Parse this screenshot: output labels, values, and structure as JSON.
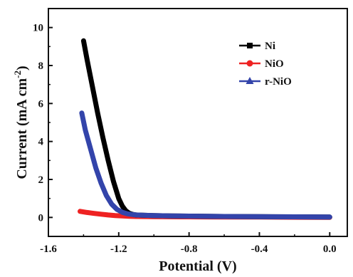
{
  "chart_data": {
    "type": "line",
    "title": "",
    "xlabel": "Potential (V)",
    "ylabel_main": "Current (mA cm",
    "ylabel_sup": "-2",
    "ylabel_close": ")",
    "xlim": [
      -1.6,
      0.1
    ],
    "ylim": [
      -1.0,
      11.0
    ],
    "x_ticks": [
      -1.6,
      -1.2,
      -0.8,
      -0.4,
      0.0
    ],
    "x_tick_labels": [
      "-1.6",
      "-1.2",
      "-0.8",
      "-0.4",
      "0.0"
    ],
    "y_ticks": [
      0,
      2,
      4,
      6,
      8,
      10
    ],
    "y_tick_labels": [
      "0",
      "2",
      "4",
      "6",
      "8",
      "10"
    ],
    "grid": false,
    "legend_position": "top-right",
    "series": [
      {
        "name": "Ni",
        "color": "#000000",
        "marker": "square",
        "x": [
          -1.4,
          -1.38,
          -1.35,
          -1.32,
          -1.29,
          -1.26,
          -1.23,
          -1.2,
          -1.18,
          -1.16,
          -1.14,
          -1.12,
          -1.1,
          -1.05,
          -1.0,
          -0.9,
          -0.8,
          -0.6,
          -0.4,
          -0.2,
          0.0
        ],
        "y": [
          9.3,
          8.3,
          6.9,
          5.5,
          4.2,
          3.0,
          1.9,
          1.0,
          0.6,
          0.35,
          0.22,
          0.16,
          0.13,
          0.11,
          0.1,
          0.08,
          0.07,
          0.05,
          0.04,
          0.03,
          0.02
        ]
      },
      {
        "name": "NiO",
        "color": "#ee2222",
        "marker": "circle",
        "x": [
          -1.42,
          -1.38,
          -1.34,
          -1.3,
          -1.26,
          -1.22,
          -1.18,
          -1.14,
          -1.1,
          -1.0,
          -0.8,
          -0.6,
          -0.4,
          -0.2,
          0.0
        ],
        "y": [
          0.32,
          0.26,
          0.21,
          0.17,
          0.13,
          0.1,
          0.08,
          0.06,
          0.05,
          0.04,
          0.03,
          0.02,
          0.02,
          0.01,
          0.0
        ]
      },
      {
        "name": "r-NiO",
        "color": "#3344aa",
        "marker": "triangle",
        "x": [
          -1.41,
          -1.39,
          -1.36,
          -1.33,
          -1.3,
          -1.27,
          -1.24,
          -1.21,
          -1.18,
          -1.15,
          -1.12,
          -1.1,
          -1.05,
          -1.0,
          -0.9,
          -0.8,
          -0.6,
          -0.4,
          -0.2,
          0.0
        ],
        "y": [
          5.5,
          4.6,
          3.6,
          2.6,
          1.8,
          1.15,
          0.7,
          0.42,
          0.27,
          0.19,
          0.15,
          0.13,
          0.11,
          0.1,
          0.08,
          0.07,
          0.05,
          0.04,
          0.03,
          0.02
        ]
      }
    ]
  }
}
